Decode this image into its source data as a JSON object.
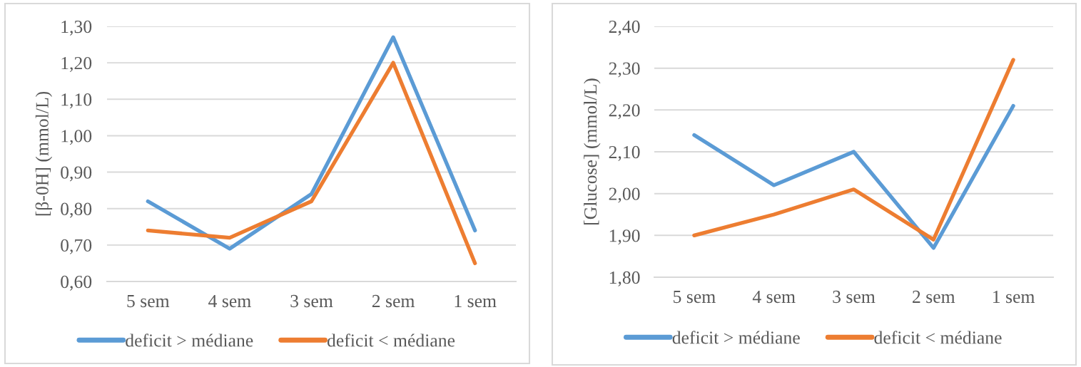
{
  "chart_data": [
    {
      "type": "line",
      "ylabel": "[β-0H] (mmol/L)",
      "categories": [
        "5 sem",
        "4 sem",
        "3 sem",
        "2 sem",
        "1 sem"
      ],
      "series": [
        {
          "name": "deficit > médiane",
          "color": "#5b9bd5",
          "values": [
            0.82,
            0.69,
            0.84,
            1.27,
            0.74
          ]
        },
        {
          "name": "deficit < médiane",
          "color": "#ed7d31",
          "values": [
            0.74,
            0.72,
            0.82,
            1.2,
            0.65
          ]
        }
      ],
      "ylim": [
        0.6,
        1.3
      ],
      "yticks": [
        {
          "value": 0.6,
          "label": "0,60"
        },
        {
          "value": 0.7,
          "label": "0,70"
        },
        {
          "value": 0.8,
          "label": "0,80"
        },
        {
          "value": 0.9,
          "label": "0,90"
        },
        {
          "value": 1.0,
          "label": "1,00"
        },
        {
          "value": 1.1,
          "label": "1,10"
        },
        {
          "value": 1.2,
          "label": "1,20"
        },
        {
          "value": 1.3,
          "label": "1,30"
        }
      ],
      "grid": "y",
      "legend": "bottom",
      "line_style": "solid"
    },
    {
      "type": "line",
      "ylabel": "[Glucose] (mmol/L)",
      "categories": [
        "5 sem",
        "4 sem",
        "3 sem",
        "2 sem",
        "1 sem"
      ],
      "series": [
        {
          "name": "deficit > médiane",
          "color": "#5b9bd5",
          "values": [
            2.14,
            2.02,
            2.1,
            1.87,
            2.21
          ]
        },
        {
          "name": "deficit < médiane",
          "color": "#ed7d31",
          "values": [
            1.9,
            1.95,
            2.01,
            1.89,
            2.32
          ]
        }
      ],
      "ylim": [
        1.8,
        2.4
      ],
      "yticks": [
        {
          "value": 1.8,
          "label": "1,80"
        },
        {
          "value": 1.9,
          "label": "1,90"
        },
        {
          "value": 2.0,
          "label": "2,00"
        },
        {
          "value": 2.1,
          "label": "2,10"
        },
        {
          "value": 2.2,
          "label": "2,20"
        },
        {
          "value": 2.3,
          "label": "2,30"
        },
        {
          "value": 2.4,
          "label": "2,40"
        }
      ],
      "grid": "y",
      "legend": "bottom",
      "line_style": "solid"
    }
  ]
}
